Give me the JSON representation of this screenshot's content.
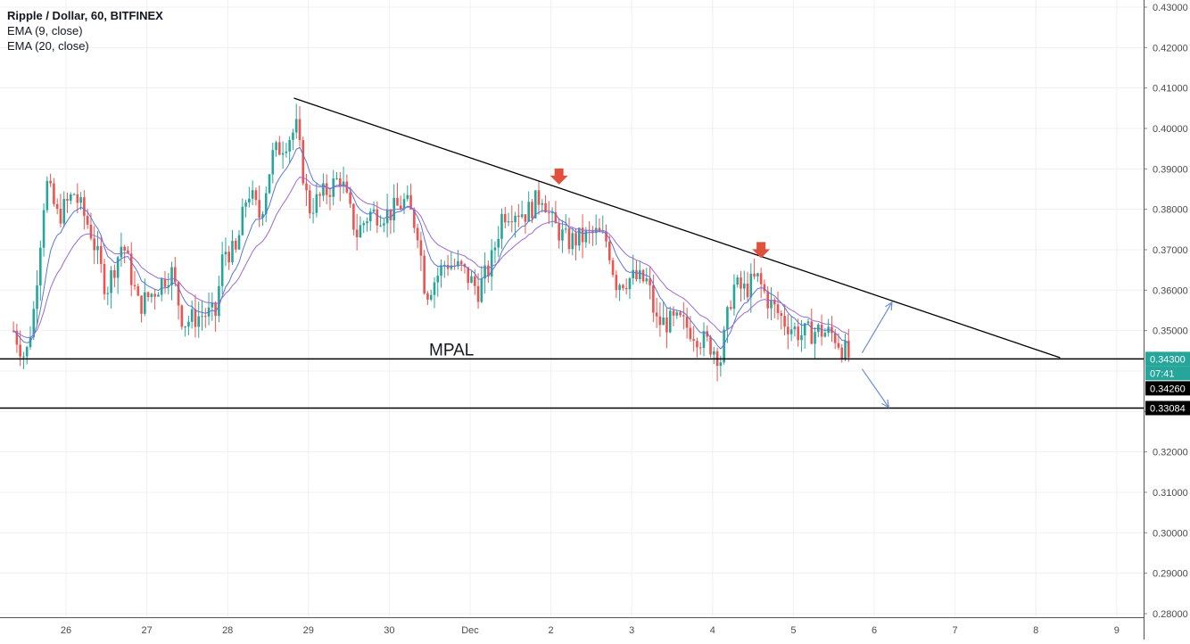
{
  "header": {
    "symbol_line": "Ripple / Dollar, 60, BITFINEX",
    "indicators": [
      "EMA (9, close)",
      "EMA (20, close)"
    ]
  },
  "colors": {
    "up": "#26a69a",
    "down": "#ef5350",
    "ema9": "#5a76d8",
    "ema20": "#9c6ad0",
    "grid": "#eef0f3",
    "axis_text": "#4a4a4a",
    "trendline": "#000000",
    "arrow_marker": "#e0503c",
    "projection_arrow": "#6c8ed0"
  },
  "chart_data": {
    "type": "candlestick",
    "title": "Ripple / Dollar, 60, BITFINEX",
    "xlabel": "",
    "ylabel": "",
    "x_ticks": [
      "26",
      "27",
      "28",
      "29",
      "30",
      "Dec",
      "2",
      "3",
      "4",
      "5",
      "6",
      "7",
      "8",
      "9"
    ],
    "y_ticks": [
      "0.43000",
      "0.42000",
      "0.41000",
      "0.40000",
      "0.39000",
      "0.38000",
      "0.37000",
      "0.36000",
      "0.35000",
      "0.34000",
      "0.33000",
      "0.32000",
      "0.31000",
      "0.30000",
      "0.29000",
      "0.28000"
    ],
    "ylim": [
      0.2775,
      0.4315
    ],
    "x_range_days": [
      25.35,
      34.4
    ],
    "price_path": [
      [
        25.35,
        0.35
      ],
      [
        25.5,
        0.343
      ],
      [
        25.6,
        0.355
      ],
      [
        25.75,
        0.387
      ],
      [
        25.9,
        0.378
      ],
      [
        26.1,
        0.384
      ],
      [
        26.3,
        0.375
      ],
      [
        26.5,
        0.36
      ],
      [
        26.7,
        0.372
      ],
      [
        26.9,
        0.356
      ],
      [
        27.1,
        0.36
      ],
      [
        27.3,
        0.365
      ],
      [
        27.45,
        0.352
      ],
      [
        27.7,
        0.354
      ],
      [
        27.85,
        0.354
      ],
      [
        27.95,
        0.37
      ],
      [
        28.1,
        0.369
      ],
      [
        28.25,
        0.385
      ],
      [
        28.4,
        0.378
      ],
      [
        28.55,
        0.393
      ],
      [
        28.72,
        0.397
      ],
      [
        28.85,
        0.4
      ],
      [
        29.0,
        0.38
      ],
      [
        29.2,
        0.384
      ],
      [
        29.4,
        0.388
      ],
      [
        29.5,
        0.38
      ],
      [
        29.6,
        0.374
      ],
      [
        29.75,
        0.379
      ],
      [
        29.9,
        0.379
      ],
      [
        30.0,
        0.379
      ],
      [
        30.2,
        0.382
      ],
      [
        30.35,
        0.375
      ],
      [
        30.45,
        0.359
      ],
      [
        30.7,
        0.367
      ],
      [
        30.9,
        0.365
      ],
      [
        31.1,
        0.36
      ],
      [
        31.25,
        0.366
      ],
      [
        31.4,
        0.379
      ],
      [
        31.55,
        0.38
      ],
      [
        31.7,
        0.379
      ],
      [
        31.9,
        0.384
      ],
      [
        32.0,
        0.377
      ],
      [
        32.2,
        0.372
      ],
      [
        32.4,
        0.373
      ],
      [
        32.55,
        0.374
      ],
      [
        32.7,
        0.372
      ],
      [
        32.8,
        0.362
      ],
      [
        33.0,
        0.363
      ],
      [
        33.2,
        0.362
      ],
      [
        33.3,
        0.352
      ],
      [
        33.6,
        0.352
      ],
      [
        33.75,
        0.35
      ],
      [
        33.85,
        0.348
      ],
      [
        34.0,
        0.346
      ],
      [
        34.1,
        0.343
      ],
      [
        34.25,
        0.361
      ],
      [
        34.4,
        0.36
      ],
      [
        34.55,
        0.363
      ],
      [
        34.7,
        0.357
      ],
      [
        34.9,
        0.352
      ],
      [
        35.1,
        0.349
      ],
      [
        35.3,
        0.35
      ],
      [
        35.5,
        0.349
      ],
      [
        35.7,
        0.343
      ]
    ],
    "ema_9_period": 9,
    "ema_20_period": 20,
    "price_labels": [
      {
        "value": "0.34300",
        "style": "last"
      },
      {
        "value": "07:41",
        "style": "countdown"
      },
      {
        "value": "0.34260",
        "style": "dark"
      },
      {
        "value": "0.33084",
        "style": "dark"
      }
    ],
    "horizontal_lines": [
      0.343,
      0.33084
    ],
    "trendline": {
      "start": [
        28.82,
        0.4075
      ],
      "end": [
        38.3,
        0.3433
      ]
    },
    "resistance_markers": [
      [
        32.1,
        0.387
      ],
      [
        34.6,
        0.3688
      ]
    ],
    "annotation": "MPAL",
    "projections": [
      {
        "from": [
          35.85,
          0.3445
        ],
        "to": [
          36.22,
          0.357
        ]
      },
      {
        "from": [
          35.85,
          0.3405
        ],
        "to": [
          36.18,
          0.331
        ]
      }
    ]
  }
}
